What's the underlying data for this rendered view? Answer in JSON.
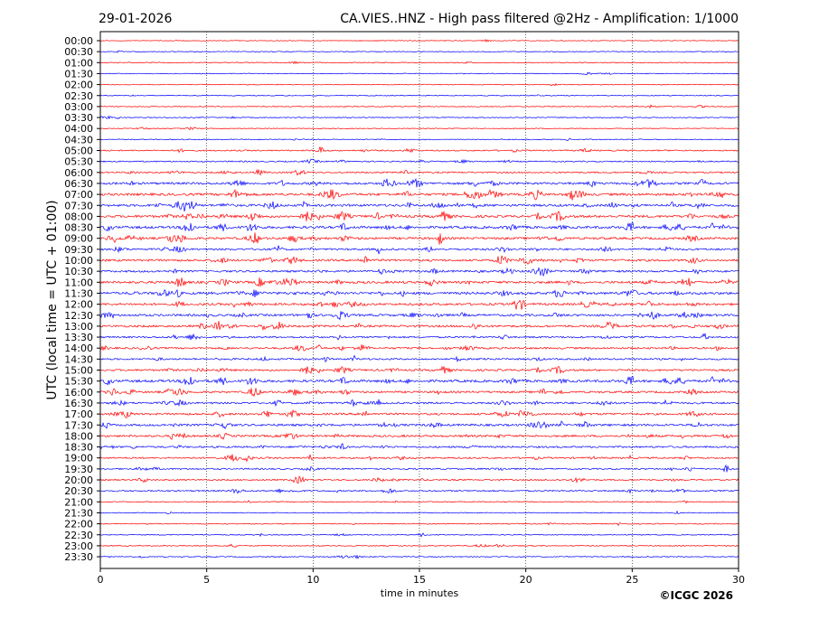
{
  "header": {
    "date": "29-01-2026",
    "title": "CA.VIES..HNZ - High pass filtered @2Hz - Amplification: 1/1000"
  },
  "footer": {
    "copyright": "©ICGC 2026"
  },
  "colors": {
    "trace_a": "#ff0000",
    "trace_b": "#0000ff",
    "grid": "#000000",
    "background": "#ffffff"
  },
  "chart_data": {
    "type": "line",
    "title": "CA.VIES..HNZ - High pass filtered @2Hz - Amplification: 1/1000",
    "xlabel": "time in minutes",
    "ylabel": "UTC (local time = UTC + 01:00)",
    "xlim": [
      0,
      30
    ],
    "xticks": [
      0,
      5,
      10,
      15,
      20,
      25,
      30
    ],
    "grid": "vertical dotted lines at 5-minute intervals",
    "trace_colors": [
      "red",
      "blue"
    ],
    "rows": [
      "00:00",
      "00:30",
      "01:00",
      "01:30",
      "02:00",
      "02:30",
      "03:00",
      "03:30",
      "04:00",
      "04:30",
      "05:00",
      "05:30",
      "06:00",
      "06:30",
      "07:00",
      "07:30",
      "08:00",
      "08:30",
      "09:00",
      "09:30",
      "10:00",
      "10:30",
      "11:00",
      "11:30",
      "12:00",
      "12:30",
      "13:00",
      "13:30",
      "14:00",
      "14:30",
      "15:00",
      "15:30",
      "16:00",
      "16:30",
      "17:00",
      "17:30",
      "18:00",
      "18:30",
      "19:00",
      "19:30",
      "20:00",
      "20:30",
      "21:00",
      "21:30",
      "22:00",
      "22:30",
      "23:00",
      "23:30"
    ],
    "activity_level": [
      0.05,
      0.06,
      0.1,
      0.08,
      0.08,
      0.07,
      0.1,
      0.12,
      0.08,
      0.12,
      0.3,
      0.25,
      0.35,
      0.7,
      0.8,
      0.75,
      0.8,
      0.8,
      0.7,
      0.55,
      0.65,
      0.6,
      0.75,
      0.8,
      0.7,
      0.7,
      0.65,
      0.45,
      0.5,
      0.45,
      0.55,
      0.8,
      0.6,
      0.55,
      0.6,
      0.65,
      0.6,
      0.5,
      0.45,
      0.35,
      0.35,
      0.35,
      0.15,
      0.1,
      0.15,
      0.15,
      0.15,
      0.15
    ]
  }
}
